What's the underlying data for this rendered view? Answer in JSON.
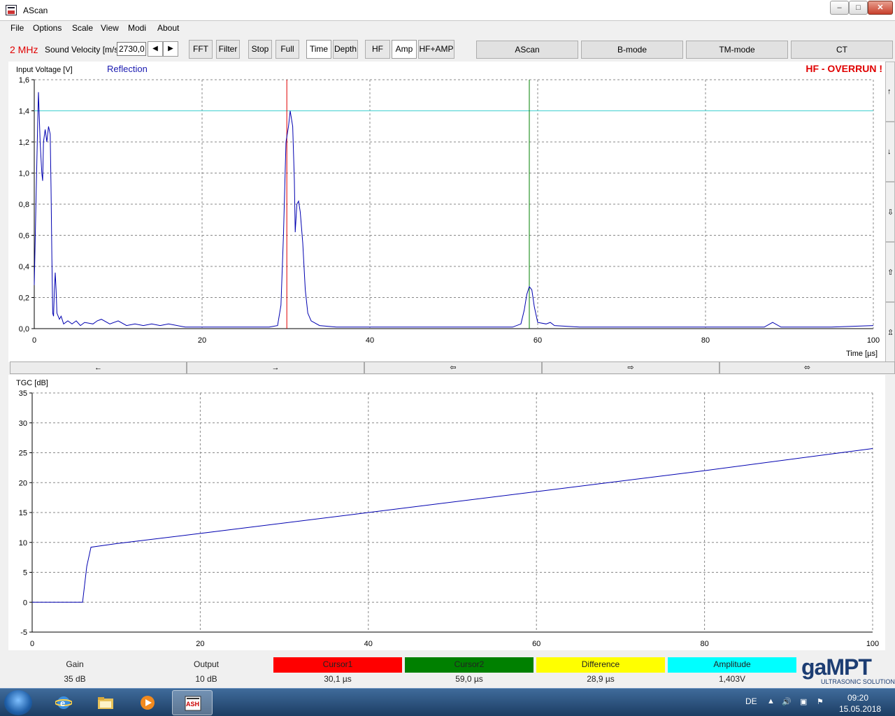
{
  "window": {
    "title": "AScan"
  },
  "menu": {
    "items": [
      "File",
      "Options",
      "Scale",
      "View",
      "Modi",
      "About"
    ]
  },
  "toolbar": {
    "frequency": "2 MHz",
    "sound_velocity_label": "Sound Velocity [m/s]",
    "sound_velocity_value": "2730,0",
    "buttons": [
      "FFT",
      "Filter",
      "Stop",
      "Full",
      "Time",
      "Depth",
      "HF",
      "Amp",
      "HF+AMP"
    ],
    "modes": [
      "AScan",
      "B-mode",
      "TM-mode",
      "CT"
    ]
  },
  "chart_data": [
    {
      "type": "line",
      "ylabel": "Input Voltage [V]",
      "xlabel": "Time [µs]",
      "legend": "Reflection",
      "warning": "HF - OVERRUN !",
      "xlim": [
        0,
        100
      ],
      "ylim": [
        0,
        1.6
      ],
      "x_ticks": [
        "0",
        "20",
        "40",
        "60",
        "80",
        "100"
      ],
      "y_ticks": [
        "0,0",
        "0,2",
        "0,4",
        "0,6",
        "0,8",
        "1,0",
        "1,2",
        "1,4",
        "1,6"
      ],
      "threshold": 1.4,
      "cursor1_x": 30.1,
      "cursor2_x": 59.0,
      "grid": true,
      "series": [
        {
          "color": "#0000b0",
          "points": [
            [
              0,
              0.28
            ],
            [
              0.2,
              0.8
            ],
            [
              0.4,
              1.3
            ],
            [
              0.5,
              1.52
            ],
            [
              0.7,
              1.2
            ],
            [
              0.9,
              1.0
            ],
            [
              1.0,
              0.95
            ],
            [
              1.1,
              1.2
            ],
            [
              1.3,
              1.28
            ],
            [
              1.5,
              1.2
            ],
            [
              1.7,
              1.3
            ],
            [
              1.9,
              1.25
            ],
            [
              2.0,
              0.9
            ],
            [
              2.1,
              0.45
            ],
            [
              2.2,
              0.1
            ],
            [
              2.3,
              0.08
            ],
            [
              2.4,
              0.25
            ],
            [
              2.5,
              0.36
            ],
            [
              2.6,
              0.25
            ],
            [
              2.7,
              0.1
            ],
            [
              3.0,
              0.06
            ],
            [
              3.2,
              0.08
            ],
            [
              3.5,
              0.03
            ],
            [
              4,
              0.05
            ],
            [
              4.5,
              0.03
            ],
            [
              5,
              0.05
            ],
            [
              5.5,
              0.02
            ],
            [
              6,
              0.04
            ],
            [
              7,
              0.03
            ],
            [
              7.5,
              0.05
            ],
            [
              8,
              0.06
            ],
            [
              9,
              0.03
            ],
            [
              10,
              0.05
            ],
            [
              11,
              0.02
            ],
            [
              12,
              0.03
            ],
            [
              13,
              0.02
            ],
            [
              14,
              0.03
            ],
            [
              15,
              0.02
            ],
            [
              16,
              0.03
            ],
            [
              18,
              0.01
            ],
            [
              20,
              0.01
            ],
            [
              25,
              0.01
            ],
            [
              28,
              0.01
            ],
            [
              29,
              0.02
            ],
            [
              29.4,
              0.15
            ],
            [
              29.7,
              0.6
            ],
            [
              30.0,
              1.2
            ],
            [
              30.3,
              1.3
            ],
            [
              30.5,
              1.4
            ],
            [
              30.8,
              1.3
            ],
            [
              31.0,
              0.95
            ],
            [
              31.1,
              0.62
            ],
            [
              31.3,
              0.8
            ],
            [
              31.5,
              0.82
            ],
            [
              31.7,
              0.75
            ],
            [
              32.0,
              0.55
            ],
            [
              32.3,
              0.25
            ],
            [
              32.6,
              0.1
            ],
            [
              33.0,
              0.05
            ],
            [
              34,
              0.02
            ],
            [
              36,
              0.01
            ],
            [
              40,
              0.01
            ],
            [
              45,
              0.01
            ],
            [
              50,
              0.01
            ],
            [
              55,
              0.01
            ],
            [
              57,
              0.01
            ],
            [
              58,
              0.03
            ],
            [
              58.4,
              0.12
            ],
            [
              58.7,
              0.22
            ],
            [
              59.0,
              0.27
            ],
            [
              59.3,
              0.25
            ],
            [
              59.6,
              0.14
            ],
            [
              60,
              0.04
            ],
            [
              61,
              0.03
            ],
            [
              61.5,
              0.04
            ],
            [
              62,
              0.02
            ],
            [
              65,
              0.01
            ],
            [
              70,
              0.01
            ],
            [
              75,
              0.01
            ],
            [
              80,
              0.01
            ],
            [
              85,
              0.01
            ],
            [
              87,
              0.01
            ],
            [
              88,
              0.04
            ],
            [
              89,
              0.01
            ],
            [
              95,
              0.01
            ],
            [
              100,
              0.02
            ]
          ]
        }
      ]
    },
    {
      "type": "line",
      "ylabel": "TGC [dB]",
      "xlim": [
        0,
        100
      ],
      "ylim": [
        -5,
        35
      ],
      "x_ticks": [
        "0",
        "20",
        "40",
        "60",
        "80",
        "100"
      ],
      "y_ticks": [
        "-5",
        "0",
        "5",
        "10",
        "15",
        "20",
        "25",
        "30",
        "35"
      ],
      "grid": true,
      "series": [
        {
          "color": "#0000b0",
          "points": [
            [
              0,
              0
            ],
            [
              6,
              0
            ],
            [
              6.5,
              6
            ],
            [
              7,
              9.2
            ],
            [
              8,
              9.4
            ],
            [
              10,
              9.8
            ],
            [
              20,
              11.5
            ],
            [
              40,
              15
            ],
            [
              60,
              18.5
            ],
            [
              80,
              22
            ],
            [
              100,
              25.7
            ]
          ]
        }
      ]
    }
  ],
  "nav_buttons": [
    "←",
    "→",
    "⇦",
    "⇨",
    "⬄"
  ],
  "side_buttons": [
    "↑",
    "↓",
    "⇩",
    "⇧",
    "⇫"
  ],
  "status": {
    "gain_label": "Gain",
    "gain_value": "35 dB",
    "output_label": "Output",
    "output_value": "10 dB",
    "cursor1_label": "Cursor1",
    "cursor1_value": "30,1 µs",
    "cursor2_label": "Cursor2",
    "cursor2_value": "59,0 µs",
    "difference_label": "Difference",
    "difference_value": "28,9 µs",
    "amplitude_label": "Amplitude",
    "amplitude_value": "1,403V",
    "colors": {
      "cursor1": "#ff0000",
      "cursor2": "#008000",
      "difference": "#ffff00",
      "amplitude": "#00ffff"
    }
  },
  "logo": {
    "main": "gaMPT",
    "sub": "ULTRASONIC SOLUTIONS"
  },
  "taskbar": {
    "language": "DE",
    "time": "09:20",
    "date": "15.05.2018",
    "app_label": "ASH"
  }
}
